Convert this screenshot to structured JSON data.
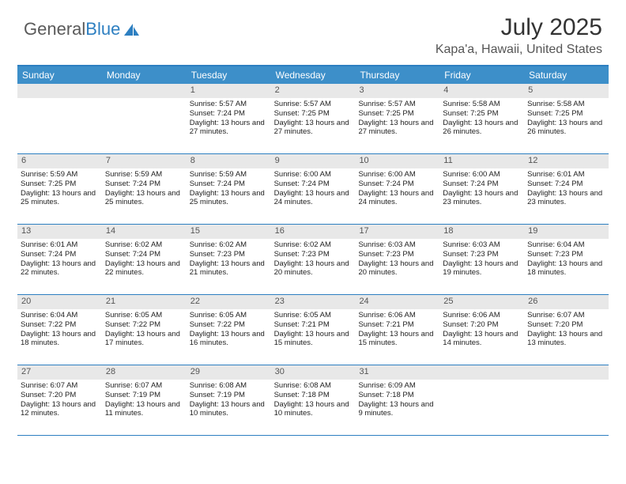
{
  "logo": {
    "part1": "General",
    "part2": "Blue"
  },
  "title": "July 2025",
  "location": "Kapa'a, Hawaii, United States",
  "dayHeaders": [
    "Sunday",
    "Monday",
    "Tuesday",
    "Wednesday",
    "Thursday",
    "Friday",
    "Saturday"
  ],
  "colors": {
    "headerBar": "#3d8fc9",
    "border": "#2d7fc1",
    "dayNumBg": "#e8e8e8"
  },
  "weeks": [
    [
      {
        "empty": true
      },
      {
        "empty": true
      },
      {
        "day": "1",
        "sunrise": "Sunrise: 5:57 AM",
        "sunset": "Sunset: 7:24 PM",
        "daylight": "Daylight: 13 hours and 27 minutes."
      },
      {
        "day": "2",
        "sunrise": "Sunrise: 5:57 AM",
        "sunset": "Sunset: 7:25 PM",
        "daylight": "Daylight: 13 hours and 27 minutes."
      },
      {
        "day": "3",
        "sunrise": "Sunrise: 5:57 AM",
        "sunset": "Sunset: 7:25 PM",
        "daylight": "Daylight: 13 hours and 27 minutes."
      },
      {
        "day": "4",
        "sunrise": "Sunrise: 5:58 AM",
        "sunset": "Sunset: 7:25 PM",
        "daylight": "Daylight: 13 hours and 26 minutes."
      },
      {
        "day": "5",
        "sunrise": "Sunrise: 5:58 AM",
        "sunset": "Sunset: 7:25 PM",
        "daylight": "Daylight: 13 hours and 26 minutes."
      }
    ],
    [
      {
        "day": "6",
        "sunrise": "Sunrise: 5:59 AM",
        "sunset": "Sunset: 7:25 PM",
        "daylight": "Daylight: 13 hours and 25 minutes."
      },
      {
        "day": "7",
        "sunrise": "Sunrise: 5:59 AM",
        "sunset": "Sunset: 7:24 PM",
        "daylight": "Daylight: 13 hours and 25 minutes."
      },
      {
        "day": "8",
        "sunrise": "Sunrise: 5:59 AM",
        "sunset": "Sunset: 7:24 PM",
        "daylight": "Daylight: 13 hours and 25 minutes."
      },
      {
        "day": "9",
        "sunrise": "Sunrise: 6:00 AM",
        "sunset": "Sunset: 7:24 PM",
        "daylight": "Daylight: 13 hours and 24 minutes."
      },
      {
        "day": "10",
        "sunrise": "Sunrise: 6:00 AM",
        "sunset": "Sunset: 7:24 PM",
        "daylight": "Daylight: 13 hours and 24 minutes."
      },
      {
        "day": "11",
        "sunrise": "Sunrise: 6:00 AM",
        "sunset": "Sunset: 7:24 PM",
        "daylight": "Daylight: 13 hours and 23 minutes."
      },
      {
        "day": "12",
        "sunrise": "Sunrise: 6:01 AM",
        "sunset": "Sunset: 7:24 PM",
        "daylight": "Daylight: 13 hours and 23 minutes."
      }
    ],
    [
      {
        "day": "13",
        "sunrise": "Sunrise: 6:01 AM",
        "sunset": "Sunset: 7:24 PM",
        "daylight": "Daylight: 13 hours and 22 minutes."
      },
      {
        "day": "14",
        "sunrise": "Sunrise: 6:02 AM",
        "sunset": "Sunset: 7:24 PM",
        "daylight": "Daylight: 13 hours and 22 minutes."
      },
      {
        "day": "15",
        "sunrise": "Sunrise: 6:02 AM",
        "sunset": "Sunset: 7:23 PM",
        "daylight": "Daylight: 13 hours and 21 minutes."
      },
      {
        "day": "16",
        "sunrise": "Sunrise: 6:02 AM",
        "sunset": "Sunset: 7:23 PM",
        "daylight": "Daylight: 13 hours and 20 minutes."
      },
      {
        "day": "17",
        "sunrise": "Sunrise: 6:03 AM",
        "sunset": "Sunset: 7:23 PM",
        "daylight": "Daylight: 13 hours and 20 minutes."
      },
      {
        "day": "18",
        "sunrise": "Sunrise: 6:03 AM",
        "sunset": "Sunset: 7:23 PM",
        "daylight": "Daylight: 13 hours and 19 minutes."
      },
      {
        "day": "19",
        "sunrise": "Sunrise: 6:04 AM",
        "sunset": "Sunset: 7:23 PM",
        "daylight": "Daylight: 13 hours and 18 minutes."
      }
    ],
    [
      {
        "day": "20",
        "sunrise": "Sunrise: 6:04 AM",
        "sunset": "Sunset: 7:22 PM",
        "daylight": "Daylight: 13 hours and 18 minutes."
      },
      {
        "day": "21",
        "sunrise": "Sunrise: 6:05 AM",
        "sunset": "Sunset: 7:22 PM",
        "daylight": "Daylight: 13 hours and 17 minutes."
      },
      {
        "day": "22",
        "sunrise": "Sunrise: 6:05 AM",
        "sunset": "Sunset: 7:22 PM",
        "daylight": "Daylight: 13 hours and 16 minutes."
      },
      {
        "day": "23",
        "sunrise": "Sunrise: 6:05 AM",
        "sunset": "Sunset: 7:21 PM",
        "daylight": "Daylight: 13 hours and 15 minutes."
      },
      {
        "day": "24",
        "sunrise": "Sunrise: 6:06 AM",
        "sunset": "Sunset: 7:21 PM",
        "daylight": "Daylight: 13 hours and 15 minutes."
      },
      {
        "day": "25",
        "sunrise": "Sunrise: 6:06 AM",
        "sunset": "Sunset: 7:20 PM",
        "daylight": "Daylight: 13 hours and 14 minutes."
      },
      {
        "day": "26",
        "sunrise": "Sunrise: 6:07 AM",
        "sunset": "Sunset: 7:20 PM",
        "daylight": "Daylight: 13 hours and 13 minutes."
      }
    ],
    [
      {
        "day": "27",
        "sunrise": "Sunrise: 6:07 AM",
        "sunset": "Sunset: 7:20 PM",
        "daylight": "Daylight: 13 hours and 12 minutes."
      },
      {
        "day": "28",
        "sunrise": "Sunrise: 6:07 AM",
        "sunset": "Sunset: 7:19 PM",
        "daylight": "Daylight: 13 hours and 11 minutes."
      },
      {
        "day": "29",
        "sunrise": "Sunrise: 6:08 AM",
        "sunset": "Sunset: 7:19 PM",
        "daylight": "Daylight: 13 hours and 10 minutes."
      },
      {
        "day": "30",
        "sunrise": "Sunrise: 6:08 AM",
        "sunset": "Sunset: 7:18 PM",
        "daylight": "Daylight: 13 hours and 10 minutes."
      },
      {
        "day": "31",
        "sunrise": "Sunrise: 6:09 AM",
        "sunset": "Sunset: 7:18 PM",
        "daylight": "Daylight: 13 hours and 9 minutes."
      },
      {
        "empty": true
      },
      {
        "empty": true
      }
    ]
  ]
}
